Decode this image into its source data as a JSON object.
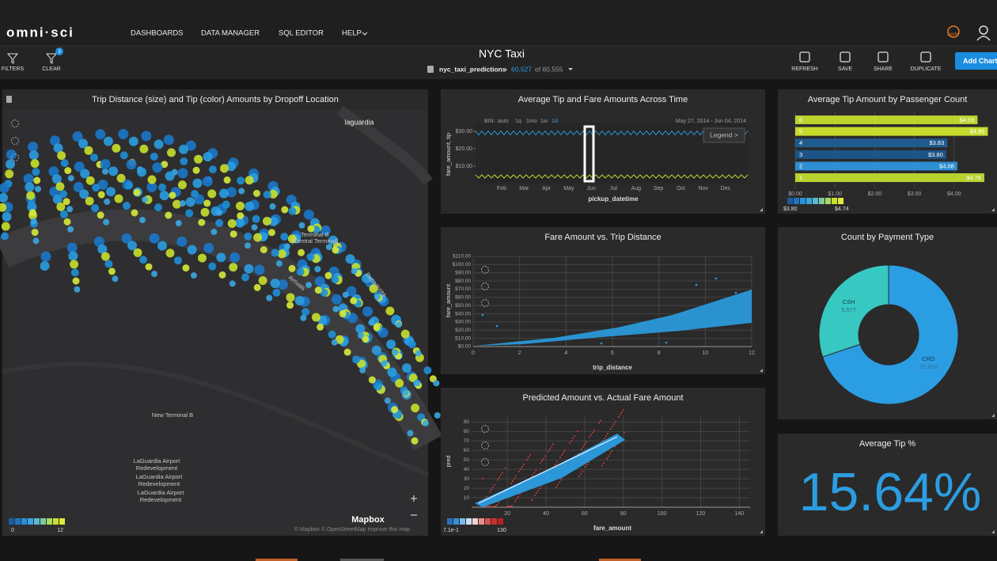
{
  "nav": {
    "logo": "omni·sci",
    "items": [
      "DASHBOARDS",
      "DATA MANAGER",
      "SQL EDITOR",
      "HELP"
    ],
    "jupyter": "jupyter"
  },
  "toolbar": {
    "filters": "FILTERS",
    "clear": "CLEAR",
    "filter_count": "3",
    "title": "NYC Taxi",
    "table": "nyc_taxi_predictions",
    "filtered_count": "60,527",
    "total": "of 60,555",
    "buttons": [
      "REFRESH",
      "SAVE",
      "SHARE",
      "DUPLICATE"
    ],
    "add_chart": "Add Chart"
  },
  "map": {
    "title": "Trip Distance (size) and Tip (color) Amounts by Dropoff Location",
    "labels": {
      "laguardia": "laguardia",
      "terminal": [
        "Terminal B",
        "[Central Terminal]"
      ],
      "arrivals": "Arrivals",
      "departures": "Departures",
      "new_terminal": "New Terminal B",
      "redevelopment": [
        [
          "LaGuardia Airport",
          "Redevelopment"
        ],
        [
          "LaGuardia Airport",
          "Redevelopment"
        ],
        [
          "LaGuardia Airport",
          "Redevelopment"
        ]
      ]
    },
    "brand": "Mapbox",
    "attribution": "© Mapbox  © OpenStreetMap  Improve this map",
    "legend": [
      "0",
      "12"
    ]
  },
  "time_chart": {
    "type": "line",
    "title": "Average Tip and Fare Amounts Across Time",
    "bin_label": "BIN:",
    "bins": [
      "auto",
      "1q",
      "1mo",
      "1w",
      "1d"
    ],
    "range": "May 27, 2014 - Jun 04, 2014",
    "legend_button": "Legend >",
    "y_label": "fare_amount, tip",
    "x_label": "pickup_datetime",
    "categories": [
      "Feb",
      "Mar",
      "Apr",
      "May",
      "Jun",
      "Jul",
      "Aug",
      "Sep",
      "Oct",
      "Nov",
      "Dec"
    ],
    "ylim": [
      0,
      35
    ],
    "yticks": [
      {
        "value": 10,
        "label": "$10.00"
      },
      {
        "value": 20,
        "label": "$20.00"
      },
      {
        "value": 30,
        "label": "$30.00"
      }
    ]
  },
  "passenger_chart": {
    "type": "bar",
    "title": "Average Tip Amount by Passenger Count",
    "orientation": "horizontal",
    "categories": [
      "6",
      "5",
      "4",
      "3",
      "2",
      "1"
    ],
    "values": [
      4.59,
      4.85,
      3.83,
      3.8,
      4.08,
      4.76
    ],
    "value_labels": [
      "$4.59",
      "$4.85",
      "$3.83",
      "$3.80",
      "$4.08",
      "$4.76"
    ],
    "colors": [
      "#bcd32e",
      "#c6dc2c",
      "#1f5b8e",
      "#1d5488",
      "#2e8fd2",
      "#b8d230"
    ],
    "xlim": [
      0,
      5
    ],
    "xticks": [
      {
        "value": 0,
        "label": "$0.00"
      },
      {
        "value": 1,
        "label": "$1.00"
      },
      {
        "value": 2,
        "label": "$2.00"
      },
      {
        "value": 3,
        "label": "$3.00"
      },
      {
        "value": 4,
        "label": "$4.00"
      }
    ],
    "legend": [
      "$3.80",
      "$4.74"
    ]
  },
  "payment_chart": {
    "type": "pie",
    "title": "Count by Payment Type",
    "categories": [
      "CSH",
      "CRD"
    ],
    "values": [
      5577,
      12912
    ],
    "value_labels": [
      "5,577",
      "12,912"
    ],
    "colors": [
      "#36c8c1",
      "#2b9de2"
    ]
  },
  "fare_chart": {
    "type": "scatter",
    "title": "Fare Amount vs. Trip Distance",
    "x_label": "trip_distance",
    "y_label": "fare_amount",
    "xlim": [
      0,
      12
    ],
    "ylim": [
      0,
      110
    ],
    "xticks": [
      0,
      2,
      4,
      6,
      8,
      10,
      12
    ],
    "yticks": [
      {
        "value": 0,
        "label": "$0.00"
      },
      {
        "value": 10,
        "label": "$10.00"
      },
      {
        "value": 20,
        "label": "$20.00"
      },
      {
        "value": 30,
        "label": "$30.00"
      },
      {
        "value": 40,
        "label": "$40.00"
      },
      {
        "value": 50,
        "label": "$50.00"
      },
      {
        "value": 60,
        "label": "$60.00"
      },
      {
        "value": 70,
        "label": "$70.00"
      },
      {
        "value": 80,
        "label": "$80.00"
      },
      {
        "value": 90,
        "label": "$90.00"
      },
      {
        "value": 100,
        "label": "$100.00"
      },
      {
        "value": 110,
        "label": "$110.00"
      }
    ]
  },
  "predicted_chart": {
    "type": "scatter",
    "title": "Predicted Amount vs. Actual Fare Amount",
    "x_label": "fare_amount",
    "y_label": "pred",
    "xlim": [
      1.5,
      145.6
    ],
    "ylim": [
      0,
      97
    ],
    "xticks": [
      20,
      40,
      60,
      80,
      100,
      120,
      140
    ],
    "yticks": [
      10,
      20,
      30,
      40,
      50,
      60,
      70,
      80,
      90
    ],
    "legend": [
      "7.1e-1",
      "130"
    ]
  },
  "tip_metric": {
    "title": "Average Tip %",
    "value": 15.64,
    "value_label": "15.64%"
  }
}
